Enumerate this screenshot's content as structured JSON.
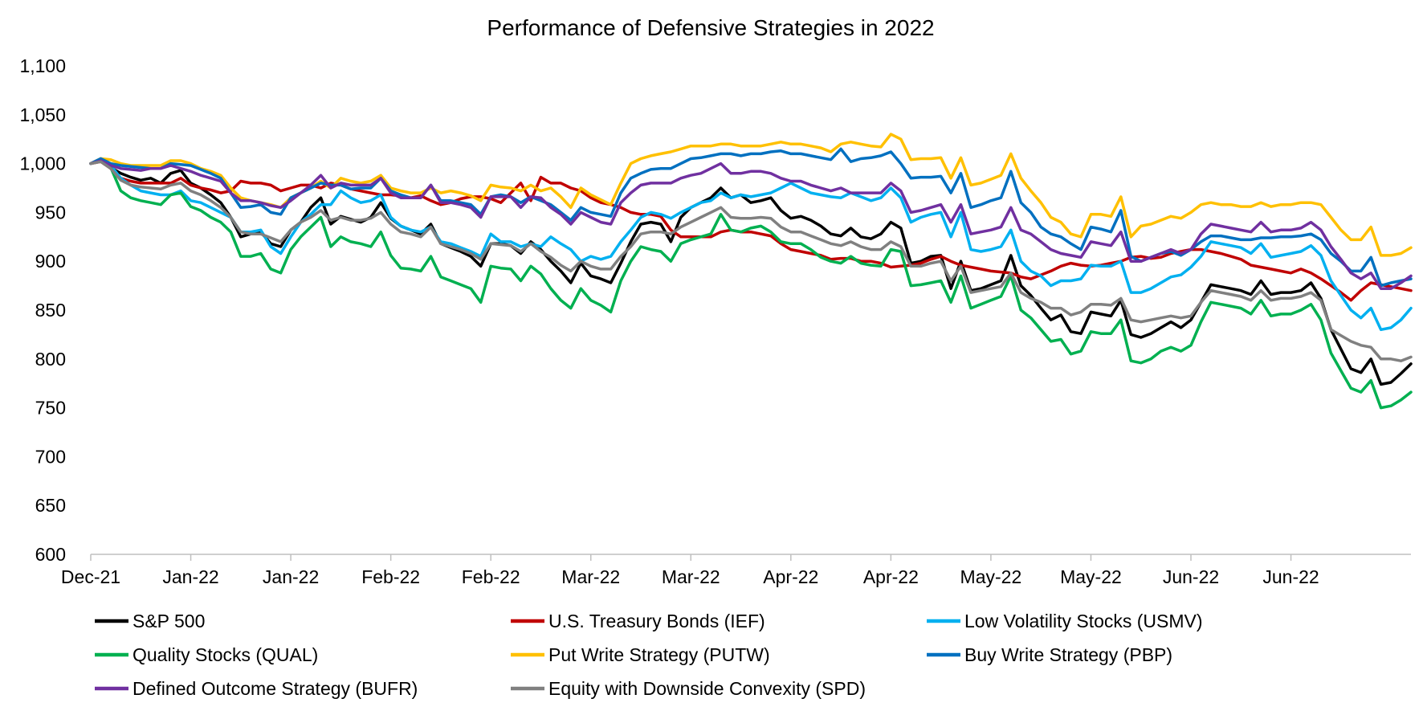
{
  "chart_data": {
    "type": "line",
    "title": "Performance of Defensive Strategies in 2022",
    "xlabel": "",
    "ylabel": "",
    "ylim": [
      600,
      1100
    ],
    "y_ticks": [
      "600",
      "650",
      "700",
      "750",
      "800",
      "850",
      "900",
      "950",
      "1,000",
      "1,050",
      "1,100"
    ],
    "y_tick_values": [
      600,
      650,
      700,
      750,
      800,
      850,
      900,
      950,
      1000,
      1050,
      1100
    ],
    "x_tick_labels": [
      "Dec-21",
      "Jan-22",
      "Jan-22",
      "Feb-22",
      "Feb-22",
      "Mar-22",
      "Mar-22",
      "Apr-22",
      "Apr-22",
      "May-22",
      "May-22",
      "Jun-22",
      "Jun-22"
    ],
    "x_tick_index": [
      0,
      10,
      20,
      30,
      40,
      50,
      60,
      70,
      80,
      90,
      100,
      110,
      120
    ],
    "grid": false,
    "legend_position": "bottom",
    "legend_columns": 3,
    "series": [
      {
        "name": "S&P 500",
        "color": "#000000",
        "values": [
          1000,
          1005,
          996,
          990,
          986,
          983,
          985,
          980,
          990,
          993,
          980,
          975,
          968,
          960,
          945,
          925,
          928,
          930,
          918,
          915,
          932,
          940,
          955,
          965,
          938,
          946,
          943,
          940,
          945,
          960,
          944,
          936,
          932,
          928,
          938,
          918,
          914,
          910,
          905,
          895,
          918,
          918,
          916,
          908,
          920,
          912,
          900,
          890,
          878,
          898,
          885,
          882,
          878,
          898,
          920,
          938,
          940,
          938,
          920,
          945,
          955,
          960,
          965,
          975,
          965,
          968,
          960,
          962,
          965,
          952,
          944,
          946,
          942,
          936,
          928,
          926,
          934,
          925,
          923,
          928,
          940,
          934,
          898,
          900,
          905,
          906,
          872,
          900,
          870,
          872,
          876,
          880,
          906,
          875,
          865,
          852,
          840,
          845,
          828,
          826,
          848,
          846,
          844,
          860,
          825,
          822,
          826,
          832,
          838,
          832,
          840,
          858,
          876,
          874,
          872,
          870,
          866,
          880,
          866,
          868,
          868,
          870,
          878,
          862,
          830,
          810,
          790,
          786,
          800,
          774,
          776,
          785,
          795
        ]
      },
      {
        "name": "U.S. Treasury Bonds (IEF)",
        "color": "#c00000",
        "values": [
          1000,
          1002,
          995,
          985,
          982,
          980,
          980,
          980,
          980,
          985,
          978,
          975,
          973,
          970,
          972,
          982,
          980,
          980,
          978,
          972,
          975,
          978,
          978,
          975,
          980,
          978,
          974,
          972,
          970,
          968,
          968,
          967,
          965,
          967,
          962,
          958,
          960,
          964,
          966,
          966,
          964,
          960,
          970,
          980,
          962,
          986,
          980,
          980,
          975,
          972,
          965,
          960,
          958,
          955,
          950,
          948,
          948,
          946,
          932,
          925,
          925,
          925,
          925,
          930,
          932,
          930,
          930,
          928,
          926,
          918,
          912,
          910,
          908,
          906,
          902,
          903,
          903,
          900,
          900,
          898,
          894,
          895,
          896,
          898,
          902,
          905,
          900,
          896,
          894,
          892,
          890,
          889,
          888,
          884,
          882,
          886,
          890,
          895,
          898,
          896,
          895,
          896,
          898,
          900,
          904,
          905,
          903,
          904,
          908,
          910,
          912,
          912,
          910,
          908,
          905,
          902,
          896,
          894,
          892,
          890,
          888,
          892,
          888,
          882,
          875,
          868,
          860,
          870,
          878,
          876,
          874,
          872,
          870
        ]
      },
      {
        "name": "Low Volatility Stocks (USMV)",
        "color": "#00b0f0",
        "values": [
          1000,
          1003,
          998,
          985,
          978,
          972,
          970,
          968,
          968,
          972,
          962,
          960,
          955,
          950,
          945,
          930,
          930,
          932,
          915,
          908,
          925,
          940,
          948,
          958,
          958,
          972,
          965,
          960,
          962,
          968,
          945,
          936,
          932,
          930,
          935,
          920,
          918,
          914,
          910,
          905,
          928,
          920,
          920,
          915,
          918,
          915,
          925,
          918,
          912,
          900,
          905,
          902,
          905,
          920,
          932,
          945,
          950,
          948,
          944,
          950,
          955,
          960,
          962,
          970,
          965,
          968,
          966,
          968,
          970,
          975,
          980,
          975,
          970,
          968,
          966,
          965,
          970,
          966,
          962,
          965,
          975,
          965,
          940,
          945,
          948,
          950,
          925,
          950,
          912,
          910,
          912,
          915,
          932,
          900,
          890,
          885,
          875,
          880,
          880,
          882,
          896,
          895,
          895,
          900,
          868,
          868,
          872,
          878,
          884,
          886,
          894,
          905,
          920,
          918,
          916,
          914,
          908,
          918,
          904,
          906,
          908,
          910,
          916,
          906,
          880,
          865,
          850,
          842,
          852,
          830,
          832,
          840,
          852
        ]
      },
      {
        "name": "Quality Stocks (QUAL)",
        "color": "#00b050",
        "values": [
          1000,
          1003,
          996,
          972,
          965,
          962,
          960,
          958,
          968,
          970,
          956,
          952,
          945,
          940,
          930,
          905,
          905,
          908,
          892,
          888,
          912,
          925,
          935,
          945,
          915,
          925,
          920,
          918,
          915,
          930,
          906,
          893,
          892,
          890,
          905,
          884,
          880,
          876,
          872,
          858,
          895,
          893,
          892,
          880,
          895,
          887,
          872,
          860,
          852,
          872,
          860,
          855,
          848,
          880,
          900,
          915,
          912,
          910,
          900,
          918,
          922,
          925,
          928,
          948,
          932,
          930,
          934,
          936,
          930,
          920,
          918,
          918,
          912,
          904,
          900,
          898,
          905,
          898,
          896,
          895,
          912,
          910,
          875,
          876,
          878,
          880,
          858,
          885,
          852,
          856,
          860,
          864,
          885,
          850,
          842,
          830,
          818,
          820,
          805,
          808,
          828,
          826,
          826,
          840,
          798,
          796,
          800,
          808,
          812,
          808,
          814,
          838,
          858,
          856,
          854,
          852,
          846,
          860,
          844,
          846,
          846,
          850,
          856,
          840,
          806,
          788,
          770,
          766,
          778,
          750,
          752,
          758,
          766
        ]
      },
      {
        "name": "Put Write Strategy (PUTW)",
        "color": "#ffc000",
        "values": [
          1000,
          1005,
          1004,
          1000,
          998,
          998,
          998,
          998,
          1003,
          1003,
          1000,
          995,
          992,
          988,
          975,
          965,
          962,
          960,
          958,
          955,
          965,
          970,
          975,
          982,
          975,
          985,
          982,
          980,
          982,
          988,
          975,
          972,
          970,
          970,
          975,
          970,
          972,
          970,
          967,
          962,
          978,
          976,
          975,
          972,
          978,
          972,
          975,
          966,
          955,
          975,
          968,
          963,
          958,
          980,
          1000,
          1005,
          1008,
          1010,
          1012,
          1015,
          1018,
          1018,
          1018,
          1020,
          1020,
          1018,
          1018,
          1018,
          1020,
          1022,
          1020,
          1020,
          1018,
          1016,
          1012,
          1020,
          1022,
          1020,
          1018,
          1017,
          1030,
          1025,
          1004,
          1005,
          1005,
          1006,
          985,
          1006,
          978,
          980,
          984,
          988,
          1010,
          985,
          972,
          960,
          945,
          940,
          928,
          925,
          948,
          948,
          946,
          966,
          925,
          936,
          938,
          942,
          946,
          944,
          950,
          958,
          960,
          958,
          958,
          956,
          956,
          960,
          956,
          958,
          958,
          960,
          960,
          958,
          945,
          932,
          922,
          922,
          935,
          906,
          906,
          908,
          914
        ]
      },
      {
        "name": "Buy Write Strategy (PBP)",
        "color": "#0070c0",
        "values": [
          1000,
          1005,
          1000,
          998,
          997,
          996,
          995,
          995,
          1000,
          999,
          998,
          994,
          990,
          985,
          970,
          955,
          956,
          958,
          950,
          948,
          965,
          970,
          975,
          980,
          978,
          978,
          974,
          975,
          975,
          985,
          972,
          968,
          965,
          965,
          978,
          962,
          962,
          960,
          958,
          948,
          966,
          968,
          966,
          960,
          966,
          962,
          958,
          950,
          942,
          955,
          950,
          948,
          946,
          970,
          985,
          990,
          994,
          995,
          995,
          1000,
          1005,
          1006,
          1008,
          1010,
          1010,
          1008,
          1010,
          1010,
          1012,
          1013,
          1010,
          1010,
          1008,
          1006,
          1004,
          1015,
          1002,
          1005,
          1006,
          1008,
          1012,
          1000,
          985,
          986,
          986,
          987,
          970,
          990,
          955,
          958,
          962,
          965,
          992,
          960,
          950,
          935,
          928,
          925,
          918,
          912,
          935,
          933,
          930,
          952,
          905,
          900,
          904,
          908,
          910,
          906,
          912,
          920,
          926,
          926,
          924,
          922,
          922,
          924,
          924,
          925,
          925,
          926,
          928,
          922,
          908,
          900,
          890,
          890,
          904,
          875,
          878,
          880,
          882
        ]
      },
      {
        "name": "Defined Outcome Strategy (BUFR)",
        "color": "#7030a0",
        "values": [
          1000,
          1003,
          998,
          995,
          994,
          993,
          995,
          995,
          998,
          995,
          992,
          988,
          985,
          982,
          970,
          962,
          962,
          960,
          957,
          955,
          962,
          970,
          978,
          988,
          975,
          980,
          978,
          978,
          978,
          985,
          970,
          965,
          965,
          965,
          978,
          960,
          960,
          958,
          955,
          945,
          966,
          966,
          966,
          955,
          966,
          965,
          955,
          948,
          938,
          950,
          945,
          940,
          938,
          960,
          970,
          978,
          980,
          980,
          980,
          985,
          988,
          990,
          995,
          1000,
          990,
          990,
          992,
          992,
          990,
          985,
          982,
          982,
          978,
          975,
          972,
          975,
          970,
          970,
          970,
          970,
          980,
          972,
          950,
          952,
          955,
          958,
          940,
          958,
          928,
          930,
          932,
          935,
          955,
          932,
          928,
          920,
          912,
          908,
          906,
          904,
          920,
          918,
          916,
          930,
          900,
          900,
          904,
          908,
          912,
          908,
          912,
          928,
          938,
          936,
          934,
          932,
          930,
          940,
          930,
          932,
          932,
          934,
          940,
          932,
          915,
          902,
          888,
          882,
          888,
          872,
          872,
          878,
          885
        ]
      },
      {
        "name": "Equity with Downside Convexity (SPD)",
        "color": "#808080",
        "values": [
          1000,
          1002,
          995,
          983,
          978,
          976,
          975,
          974,
          978,
          980,
          972,
          968,
          962,
          955,
          945,
          930,
          928,
          928,
          924,
          920,
          932,
          940,
          945,
          952,
          942,
          945,
          942,
          942,
          944,
          950,
          938,
          930,
          928,
          925,
          935,
          918,
          915,
          912,
          908,
          902,
          918,
          917,
          916,
          910,
          918,
          910,
          904,
          896,
          890,
          900,
          895,
          892,
          892,
          905,
          915,
          928,
          930,
          930,
          928,
          935,
          940,
          945,
          950,
          955,
          945,
          944,
          944,
          945,
          944,
          935,
          930,
          930,
          926,
          922,
          918,
          916,
          920,
          915,
          912,
          912,
          920,
          915,
          895,
          895,
          898,
          900,
          880,
          895,
          868,
          870,
          872,
          874,
          888,
          868,
          862,
          858,
          852,
          852,
          845,
          848,
          856,
          856,
          855,
          862,
          840,
          838,
          840,
          842,
          844,
          842,
          844,
          858,
          870,
          868,
          866,
          864,
          860,
          870,
          860,
          862,
          862,
          864,
          868,
          860,
          830,
          824,
          818,
          814,
          812,
          800,
          800,
          798,
          802
        ]
      }
    ]
  }
}
